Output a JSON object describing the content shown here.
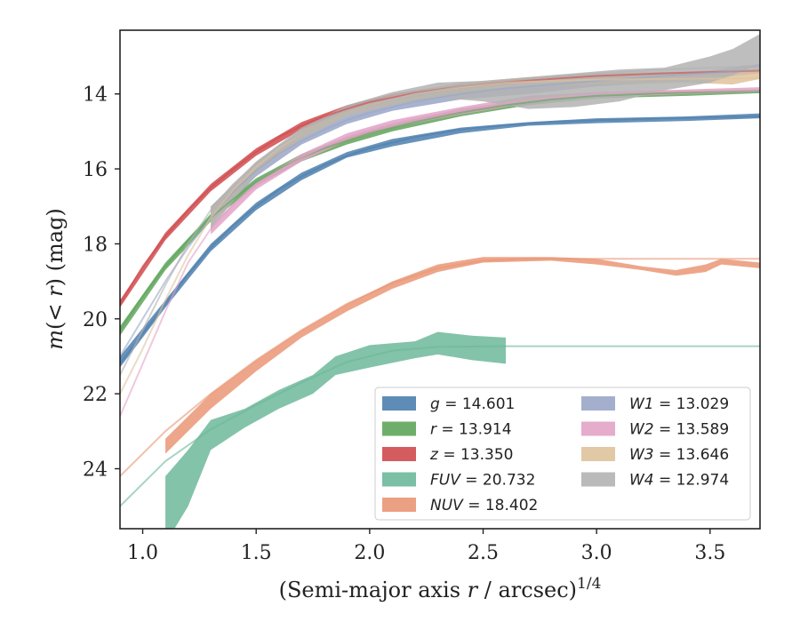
{
  "chart_data": {
    "type": "line",
    "xlabel": "(Semi-major axis r / arcsec)^{1/4}",
    "ylabel": "m(< r) (mag)",
    "xlim": [
      0.9,
      3.72
    ],
    "ylim": [
      25.6,
      12.3
    ],
    "y_inverted": true,
    "x_ticks": [
      "1.0",
      "1.5",
      "2.0",
      "2.5",
      "3.0",
      "3.5"
    ],
    "y_ticks": [
      "14",
      "16",
      "18",
      "20",
      "22",
      "24"
    ],
    "legend_placement": "lower-right",
    "series": [
      {
        "name": "g = 14.601",
        "color": "#4c7fae",
        "model": [
          [
            0.9,
            21.2
          ],
          [
            1.0,
            20.4
          ],
          [
            1.1,
            19.6
          ],
          [
            1.2,
            18.8
          ],
          [
            1.3,
            18.1
          ],
          [
            1.4,
            17.5
          ],
          [
            1.5,
            17.0
          ],
          [
            1.6,
            16.55
          ],
          [
            1.7,
            16.2
          ],
          [
            1.8,
            15.9
          ],
          [
            1.9,
            15.65
          ],
          [
            2.0,
            15.45
          ],
          [
            2.2,
            15.15
          ],
          [
            2.4,
            14.95
          ],
          [
            2.6,
            14.83
          ],
          [
            2.8,
            14.75
          ],
          [
            3.0,
            14.7
          ],
          [
            3.3,
            14.65
          ],
          [
            3.72,
            14.6
          ]
        ],
        "band": [
          [
            0.9,
            21.0,
            21.3
          ],
          [
            1.1,
            19.5,
            19.7
          ],
          [
            1.3,
            18.0,
            18.2
          ],
          [
            1.5,
            16.9,
            17.1
          ],
          [
            1.7,
            16.1,
            16.3
          ],
          [
            1.9,
            15.55,
            15.7
          ],
          [
            2.1,
            15.2,
            15.4
          ],
          [
            2.4,
            14.9,
            15.05
          ],
          [
            2.7,
            14.75,
            14.85
          ],
          [
            3.0,
            14.65,
            14.78
          ],
          [
            3.4,
            14.6,
            14.72
          ],
          [
            3.72,
            14.52,
            14.65
          ]
        ]
      },
      {
        "name": "r = 13.914",
        "color": "#5fa55a",
        "model": [
          [
            0.9,
            20.3
          ],
          [
            1.0,
            19.4
          ],
          [
            1.1,
            18.6
          ],
          [
            1.2,
            17.9
          ],
          [
            1.3,
            17.3
          ],
          [
            1.4,
            16.8
          ],
          [
            1.5,
            16.35
          ],
          [
            1.6,
            16.0
          ],
          [
            1.7,
            15.7
          ],
          [
            1.8,
            15.45
          ],
          [
            1.9,
            15.25
          ],
          [
            2.0,
            15.05
          ],
          [
            2.2,
            14.75
          ],
          [
            2.4,
            14.5
          ],
          [
            2.6,
            14.3
          ],
          [
            2.8,
            14.15
          ],
          [
            3.0,
            14.05
          ],
          [
            3.3,
            13.98
          ],
          [
            3.72,
            13.92
          ]
        ],
        "band": [
          [
            0.9,
            20.2,
            20.45
          ],
          [
            1.1,
            18.5,
            18.7
          ],
          [
            1.3,
            17.2,
            17.4
          ],
          [
            1.5,
            16.25,
            16.45
          ],
          [
            1.7,
            15.6,
            15.8
          ],
          [
            1.9,
            15.15,
            15.35
          ],
          [
            2.1,
            14.8,
            15.0
          ],
          [
            2.4,
            14.4,
            14.6
          ],
          [
            2.7,
            14.15,
            14.3
          ],
          [
            3.0,
            14.0,
            14.12
          ],
          [
            3.4,
            13.93,
            14.05
          ],
          [
            3.72,
            13.88,
            13.98
          ]
        ]
      },
      {
        "name": "z = 13.350",
        "color": "#d04a4c",
        "model": [
          [
            0.9,
            19.6
          ],
          [
            1.0,
            18.6
          ],
          [
            1.1,
            17.8
          ],
          [
            1.2,
            17.1
          ],
          [
            1.3,
            16.5
          ],
          [
            1.4,
            16.0
          ],
          [
            1.5,
            15.55
          ],
          [
            1.6,
            15.15
          ],
          [
            1.7,
            14.85
          ],
          [
            1.8,
            14.6
          ],
          [
            1.9,
            14.4
          ],
          [
            2.0,
            14.22
          ],
          [
            2.2,
            13.97
          ],
          [
            2.4,
            13.8
          ],
          [
            2.6,
            13.68
          ],
          [
            2.8,
            13.6
          ],
          [
            3.0,
            13.52
          ],
          [
            3.3,
            13.45
          ],
          [
            3.72,
            13.38
          ]
        ],
        "band": [
          [
            0.9,
            19.5,
            19.7
          ],
          [
            1.1,
            17.7,
            17.9
          ],
          [
            1.3,
            16.4,
            16.6
          ],
          [
            1.5,
            15.45,
            15.65
          ],
          [
            1.7,
            14.75,
            14.95
          ],
          [
            1.9,
            14.3,
            14.5
          ],
          [
            2.1,
            14.0,
            14.2
          ],
          [
            2.4,
            13.72,
            13.88
          ],
          [
            2.7,
            13.58,
            13.7
          ],
          [
            3.0,
            13.48,
            13.6
          ],
          [
            3.4,
            13.4,
            13.52
          ],
          [
            3.72,
            13.33,
            13.45
          ]
        ]
      },
      {
        "name": "FUV = 20.732",
        "color": "#6db89a",
        "model": [
          [
            0.9,
            25.0
          ],
          [
            1.1,
            23.8
          ],
          [
            1.3,
            22.95
          ],
          [
            1.5,
            22.3
          ],
          [
            1.7,
            21.7
          ],
          [
            1.9,
            21.15
          ],
          [
            2.1,
            20.85
          ],
          [
            2.3,
            20.75
          ],
          [
            2.6,
            20.73
          ],
          [
            3.0,
            20.73
          ],
          [
            3.72,
            20.73
          ]
        ],
        "band": [
          [
            1.1,
            24.2,
            26.0
          ],
          [
            1.2,
            23.5,
            25.0
          ],
          [
            1.3,
            22.7,
            23.5
          ],
          [
            1.45,
            22.4,
            22.9
          ],
          [
            1.6,
            21.9,
            22.4
          ],
          [
            1.75,
            21.5,
            22.0
          ],
          [
            1.85,
            21.0,
            21.5
          ],
          [
            2.0,
            20.7,
            21.3
          ],
          [
            2.2,
            20.6,
            21.05
          ],
          [
            2.3,
            20.35,
            20.95
          ],
          [
            2.45,
            20.45,
            21.1
          ],
          [
            2.6,
            20.5,
            21.2
          ]
        ]
      },
      {
        "name": "NUV = 18.402",
        "color": "#ea9675",
        "model": [
          [
            0.9,
            24.2
          ],
          [
            1.1,
            23.0
          ],
          [
            1.3,
            22.0
          ],
          [
            1.5,
            21.1
          ],
          [
            1.7,
            20.3
          ],
          [
            1.9,
            19.6
          ],
          [
            2.1,
            19.05
          ],
          [
            2.3,
            18.65
          ],
          [
            2.5,
            18.45
          ],
          [
            2.7,
            18.4
          ],
          [
            3.0,
            18.4
          ],
          [
            3.72,
            18.4
          ]
        ],
        "band": [
          [
            1.1,
            23.2,
            23.6
          ],
          [
            1.3,
            22.0,
            22.4
          ],
          [
            1.5,
            21.1,
            21.4
          ],
          [
            1.7,
            20.3,
            20.5
          ],
          [
            1.9,
            19.6,
            19.8
          ],
          [
            2.1,
            19.0,
            19.2
          ],
          [
            2.3,
            18.55,
            18.75
          ],
          [
            2.5,
            18.35,
            18.5
          ],
          [
            2.8,
            18.35,
            18.45
          ],
          [
            3.0,
            18.4,
            18.55
          ],
          [
            3.2,
            18.6,
            18.7
          ],
          [
            3.35,
            18.7,
            18.85
          ],
          [
            3.48,
            18.55,
            18.75
          ],
          [
            3.55,
            18.4,
            18.55
          ],
          [
            3.72,
            18.5,
            18.65
          ]
        ]
      },
      {
        "name": "W1 = 13.029",
        "color": "#9aa6c8",
        "model": [
          [
            0.9,
            21.0
          ],
          [
            1.0,
            20.0
          ],
          [
            1.1,
            19.0
          ],
          [
            1.2,
            18.1
          ],
          [
            1.3,
            17.3
          ],
          [
            1.4,
            16.6
          ],
          [
            1.5,
            16.05
          ],
          [
            1.6,
            15.6
          ],
          [
            1.7,
            15.25
          ],
          [
            1.8,
            14.95
          ],
          [
            1.9,
            14.7
          ],
          [
            2.0,
            14.5
          ],
          [
            2.2,
            14.2
          ],
          [
            2.4,
            14.0
          ],
          [
            2.6,
            13.85
          ],
          [
            2.8,
            13.75
          ],
          [
            3.0,
            13.65
          ],
          [
            3.3,
            13.52
          ],
          [
            3.72,
            13.35
          ]
        ],
        "band": [
          [
            1.3,
            17.0,
            17.4
          ],
          [
            1.5,
            15.95,
            16.2
          ],
          [
            1.7,
            15.15,
            15.35
          ],
          [
            1.9,
            14.6,
            14.8
          ],
          [
            2.1,
            14.25,
            14.45
          ],
          [
            2.4,
            13.9,
            14.15
          ],
          [
            2.7,
            13.8,
            14.0
          ],
          [
            3.0,
            13.6,
            13.8
          ],
          [
            3.4,
            13.45,
            13.65
          ],
          [
            3.72,
            13.2,
            13.45
          ]
        ]
      },
      {
        "name": "W2 = 13.589",
        "color": "#e2a3c7",
        "model": [
          [
            0.9,
            22.6
          ],
          [
            1.0,
            21.2
          ],
          [
            1.1,
            19.8
          ],
          [
            1.2,
            18.5
          ],
          [
            1.3,
            17.6
          ],
          [
            1.4,
            16.95
          ],
          [
            1.5,
            16.45
          ],
          [
            1.6,
            16.05
          ],
          [
            1.7,
            15.7
          ],
          [
            1.8,
            15.4
          ],
          [
            1.9,
            15.15
          ],
          [
            2.0,
            14.95
          ],
          [
            2.2,
            14.65
          ],
          [
            2.4,
            14.45
          ],
          [
            2.6,
            14.25
          ],
          [
            2.8,
            14.1
          ],
          [
            3.0,
            14.0
          ],
          [
            3.3,
            13.93
          ],
          [
            3.72,
            13.9
          ]
        ],
        "band": [
          [
            1.3,
            17.5,
            17.75
          ],
          [
            1.5,
            16.35,
            16.55
          ],
          [
            1.7,
            15.6,
            15.8
          ],
          [
            1.9,
            15.05,
            15.25
          ],
          [
            2.1,
            14.7,
            14.9
          ],
          [
            2.4,
            14.35,
            14.55
          ],
          [
            2.7,
            14.05,
            14.25
          ],
          [
            3.0,
            13.95,
            14.1
          ],
          [
            3.4,
            13.88,
            14.0
          ],
          [
            3.72,
            13.82,
            13.95
          ]
        ]
      },
      {
        "name": "W3 = 13.646",
        "color": "#dfc39b",
        "model": [
          [
            0.9,
            22.0
          ],
          [
            1.0,
            20.8
          ],
          [
            1.1,
            19.5
          ],
          [
            1.2,
            18.3
          ],
          [
            1.3,
            17.3
          ],
          [
            1.4,
            16.55
          ],
          [
            1.5,
            15.95
          ],
          [
            1.6,
            15.45
          ],
          [
            1.7,
            15.05
          ],
          [
            1.8,
            14.75
          ],
          [
            1.9,
            14.5
          ],
          [
            2.0,
            14.3
          ],
          [
            2.2,
            14.0
          ],
          [
            2.4,
            13.82
          ],
          [
            2.6,
            13.7
          ],
          [
            2.8,
            13.65
          ],
          [
            3.0,
            13.62
          ],
          [
            3.3,
            13.6
          ],
          [
            3.72,
            13.58
          ]
        ],
        "band": [
          [
            1.3,
            17.0,
            17.5
          ],
          [
            1.5,
            15.85,
            16.1
          ],
          [
            1.7,
            14.95,
            15.2
          ],
          [
            1.9,
            14.4,
            14.6
          ],
          [
            2.1,
            14.05,
            14.3
          ],
          [
            2.4,
            13.7,
            14.0
          ],
          [
            2.7,
            13.55,
            13.8
          ],
          [
            3.0,
            13.45,
            13.75
          ],
          [
            3.4,
            13.4,
            13.7
          ],
          [
            3.6,
            13.35,
            13.75
          ],
          [
            3.72,
            13.3,
            13.6
          ]
        ]
      },
      {
        "name": "W4 = 12.974",
        "color": "#b3b3b3",
        "model": [
          [
            0.9,
            21.5
          ],
          [
            1.0,
            20.3
          ],
          [
            1.1,
            19.1
          ],
          [
            1.2,
            18.0
          ],
          [
            1.3,
            17.1
          ],
          [
            1.4,
            16.4
          ],
          [
            1.5,
            15.85
          ],
          [
            1.6,
            15.4
          ],
          [
            1.7,
            15.05
          ],
          [
            1.8,
            14.75
          ],
          [
            1.9,
            14.5
          ],
          [
            2.0,
            14.3
          ],
          [
            2.2,
            14.0
          ],
          [
            2.4,
            13.8
          ],
          [
            2.6,
            13.65
          ],
          [
            2.8,
            13.55
          ],
          [
            3.0,
            13.45
          ],
          [
            3.3,
            13.35
          ],
          [
            3.72,
            13.25
          ]
        ],
        "band": [
          [
            1.3,
            17.0,
            17.6
          ],
          [
            1.5,
            15.8,
            16.1
          ],
          [
            1.7,
            14.9,
            15.2
          ],
          [
            1.9,
            14.3,
            14.6
          ],
          [
            2.1,
            13.95,
            14.3
          ],
          [
            2.3,
            13.7,
            14.1
          ],
          [
            2.5,
            13.65,
            14.2
          ],
          [
            2.7,
            13.55,
            14.4
          ],
          [
            2.9,
            13.45,
            14.35
          ],
          [
            3.1,
            13.35,
            14.2
          ],
          [
            3.3,
            13.3,
            13.9
          ],
          [
            3.5,
            13.0,
            13.7
          ],
          [
            3.6,
            12.8,
            13.5
          ],
          [
            3.72,
            12.4,
            13.2
          ]
        ]
      }
    ]
  }
}
